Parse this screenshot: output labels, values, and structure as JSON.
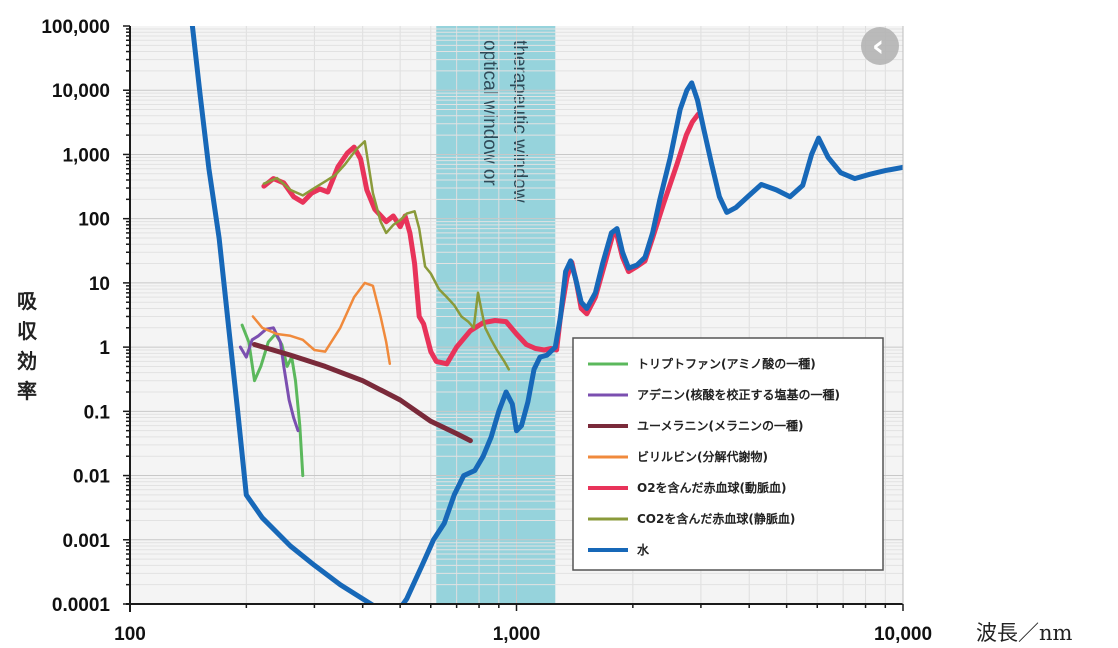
{
  "chart_data": {
    "type": "line",
    "xscale": "log",
    "yscale": "log",
    "xlim": [
      100,
      10000
    ],
    "ylim": [
      0.0001,
      100000
    ],
    "xlabel": "波長／nm",
    "ylabel": "吸収効率",
    "xticks": [
      {
        "value": 100,
        "label": "100"
      },
      {
        "value": 1000,
        "label": "1,000"
      },
      {
        "value": 10000,
        "label": "10,000"
      }
    ],
    "yticks": [
      {
        "value": 100000,
        "label": "100,000"
      },
      {
        "value": 10000,
        "label": "10,000"
      },
      {
        "value": 1000,
        "label": "1,000"
      },
      {
        "value": 100,
        "label": "100"
      },
      {
        "value": 10,
        "label": "10"
      },
      {
        "value": 1,
        "label": "1"
      },
      {
        "value": 0.1,
        "label": "0.1"
      },
      {
        "value": 0.01,
        "label": "0.01"
      },
      {
        "value": 0.001,
        "label": "0.001"
      },
      {
        "value": 0.0001,
        "label": "0.0001"
      }
    ],
    "grid": true,
    "legend_position": "bottom-right",
    "band": {
      "from": 620,
      "to": 1260,
      "color": "#96d3dc",
      "lines": [
        "optical window or",
        "therapeutic window"
      ]
    },
    "series": [
      {
        "name": "トリプトファン(アミノ酸の一種)",
        "color": "#5bb85c",
        "width": 3,
        "points": [
          [
            195,
            2.2
          ],
          [
            203,
            1.2
          ],
          [
            210,
            0.3
          ],
          [
            218,
            0.5
          ],
          [
            228,
            1.2
          ],
          [
            238,
            1.6
          ],
          [
            247,
            1.1
          ],
          [
            255,
            0.5
          ],
          [
            262,
            0.7
          ],
          [
            268,
            0.3
          ],
          [
            275,
            0.06
          ],
          [
            280,
            0.01
          ]
        ]
      },
      {
        "name": "アデニン(核酸を校正する塩基の一種)",
        "color": "#7b4fb0",
        "width": 3,
        "points": [
          [
            193,
            1.0
          ],
          [
            200,
            0.7
          ],
          [
            207,
            1.3
          ],
          [
            215,
            1.5
          ],
          [
            225,
            1.9
          ],
          [
            235,
            2.0
          ],
          [
            245,
            1.2
          ],
          [
            250,
            0.5
          ],
          [
            258,
            0.15
          ],
          [
            265,
            0.08
          ],
          [
            272,
            0.05
          ]
        ]
      },
      {
        "name": "ユーメラニン(メラニンの一種)",
        "color": "#7a2a3a",
        "width": 5,
        "points": [
          [
            210,
            1.1
          ],
          [
            260,
            0.75
          ],
          [
            320,
            0.5
          ],
          [
            400,
            0.3
          ],
          [
            500,
            0.15
          ],
          [
            600,
            0.07
          ],
          [
            700,
            0.045
          ],
          [
            760,
            0.035
          ]
        ]
      },
      {
        "name": "ビリルビン(分解代謝物)",
        "color": "#f08a3c",
        "width": 2.5,
        "points": [
          [
            208,
            3.0
          ],
          [
            220,
            2.0
          ],
          [
            240,
            1.6
          ],
          [
            260,
            1.5
          ],
          [
            280,
            1.3
          ],
          [
            300,
            0.9
          ],
          [
            320,
            0.85
          ],
          [
            350,
            2.0
          ],
          [
            380,
            6.0
          ],
          [
            405,
            10.0
          ],
          [
            425,
            9.0
          ],
          [
            445,
            3.0
          ],
          [
            460,
            1.2
          ],
          [
            470,
            0.55
          ]
        ]
      },
      {
        "name": "O2を含んだ赤血球(動脈血)",
        "color": "#e8335a",
        "width": 5,
        "points": [
          [
            222,
            320
          ],
          [
            235,
            420
          ],
          [
            250,
            360
          ],
          [
            265,
            220
          ],
          [
            280,
            180
          ],
          [
            295,
            250
          ],
          [
            310,
            290
          ],
          [
            325,
            260
          ],
          [
            345,
            640
          ],
          [
            365,
            1050
          ],
          [
            380,
            1300
          ],
          [
            395,
            850
          ],
          [
            410,
            280
          ],
          [
            430,
            140
          ],
          [
            460,
            90
          ],
          [
            480,
            110
          ],
          [
            500,
            75
          ],
          [
            515,
            110
          ],
          [
            530,
            60
          ],
          [
            545,
            20
          ],
          [
            560,
            3.0
          ],
          [
            575,
            2.3
          ],
          [
            600,
            0.85
          ],
          [
            620,
            0.6
          ],
          [
            660,
            0.55
          ],
          [
            700,
            1.0
          ],
          [
            760,
            1.8
          ],
          [
            820,
            2.4
          ],
          [
            880,
            2.6
          ],
          [
            940,
            2.5
          ],
          [
            1000,
            1.6
          ],
          [
            1060,
            1.1
          ],
          [
            1120,
            0.95
          ],
          [
            1180,
            0.9
          ],
          [
            1230,
            0.95
          ],
          [
            1270,
            0.9
          ],
          [
            1300,
            3.0
          ],
          [
            1350,
            12
          ],
          [
            1390,
            21
          ],
          [
            1430,
            10
          ],
          [
            1470,
            4.0
          ],
          [
            1520,
            3.3
          ],
          [
            1600,
            6
          ],
          [
            1700,
            22
          ],
          [
            1780,
            60
          ],
          [
            1820,
            55
          ],
          [
            1880,
            25
          ],
          [
            1950,
            15
          ],
          [
            2050,
            18
          ],
          [
            2150,
            22
          ],
          [
            2250,
            50
          ],
          [
            2400,
            170
          ],
          [
            2600,
            700
          ],
          [
            2750,
            2000
          ],
          [
            2850,
            3200
          ],
          [
            2950,
            4200
          ]
        ]
      },
      {
        "name": "CO2を含んだ赤血球(静脈血)",
        "color": "#8a9a3a",
        "width": 2.5,
        "points": [
          [
            222,
            350
          ],
          [
            240,
            430
          ],
          [
            260,
            280
          ],
          [
            280,
            230
          ],
          [
            300,
            300
          ],
          [
            320,
            380
          ],
          [
            340,
            480
          ],
          [
            360,
            700
          ],
          [
            385,
            1200
          ],
          [
            405,
            1600
          ],
          [
            425,
            250
          ],
          [
            445,
            90
          ],
          [
            460,
            60
          ],
          [
            480,
            80
          ],
          [
            500,
            95
          ],
          [
            520,
            120
          ],
          [
            545,
            130
          ],
          [
            560,
            70
          ],
          [
            580,
            18
          ],
          [
            600,
            14
          ],
          [
            630,
            8
          ],
          [
            660,
            6
          ],
          [
            690,
            4.5
          ],
          [
            720,
            3.0
          ],
          [
            750,
            2.5
          ],
          [
            775,
            2.0
          ],
          [
            795,
            7.0
          ],
          [
            810,
            4.0
          ],
          [
            830,
            2.0
          ],
          [
            860,
            1.3
          ],
          [
            890,
            0.9
          ],
          [
            930,
            0.6
          ],
          [
            955,
            0.45
          ]
        ]
      },
      {
        "name": "水",
        "color": "#1768b8",
        "width": 5,
        "points": [
          [
            145,
            100000
          ],
          [
            152,
            8000
          ],
          [
            160,
            600
          ],
          [
            170,
            50
          ],
          [
            180,
            2.0
          ],
          [
            190,
            0.1
          ],
          [
            200,
            0.005
          ],
          [
            220,
            0.0022
          ],
          [
            260,
            0.0008
          ],
          [
            300,
            0.0004
          ],
          [
            350,
            0.0002
          ],
          [
            420,
            0.0001
          ],
          [
            480,
            6e-05
          ],
          [
            520,
            0.00012
          ],
          [
            570,
            0.0004
          ],
          [
            610,
            0.001
          ],
          [
            650,
            0.0018
          ],
          [
            690,
            0.005
          ],
          [
            730,
            0.01
          ],
          [
            780,
            0.012
          ],
          [
            820,
            0.02
          ],
          [
            860,
            0.04
          ],
          [
            900,
            0.1
          ],
          [
            940,
            0.2
          ],
          [
            975,
            0.13
          ],
          [
            1000,
            0.05
          ],
          [
            1030,
            0.06
          ],
          [
            1070,
            0.14
          ],
          [
            1110,
            0.45
          ],
          [
            1150,
            0.7
          ],
          [
            1200,
            0.75
          ],
          [
            1260,
            1.0
          ],
          [
            1300,
            3.0
          ],
          [
            1340,
            15
          ],
          [
            1380,
            22
          ],
          [
            1420,
            12
          ],
          [
            1470,
            5.0
          ],
          [
            1520,
            4.0
          ],
          [
            1600,
            7
          ],
          [
            1670,
            20
          ],
          [
            1760,
            60
          ],
          [
            1820,
            70
          ],
          [
            1880,
            30
          ],
          [
            1950,
            17
          ],
          [
            2050,
            19
          ],
          [
            2150,
            25
          ],
          [
            2250,
            60
          ],
          [
            2350,
            200
          ],
          [
            2500,
            900
          ],
          [
            2650,
            5000
          ],
          [
            2760,
            10000
          ],
          [
            2840,
            13000
          ],
          [
            2940,
            7000
          ],
          [
            3050,
            2500
          ],
          [
            3200,
            700
          ],
          [
            3350,
            220
          ],
          [
            3500,
            125
          ],
          [
            3700,
            150
          ],
          [
            4000,
            230
          ],
          [
            4300,
            340
          ],
          [
            4700,
            280
          ],
          [
            5100,
            220
          ],
          [
            5500,
            330
          ],
          [
            5800,
            1000
          ],
          [
            6050,
            1800
          ],
          [
            6400,
            900
          ],
          [
            6900,
            520
          ],
          [
            7500,
            420
          ],
          [
            8200,
            490
          ],
          [
            9000,
            560
          ],
          [
            10000,
            630
          ]
        ]
      }
    ]
  },
  "collapse_button": {
    "icon": "chevron-left-icon",
    "glyph": "‹"
  }
}
